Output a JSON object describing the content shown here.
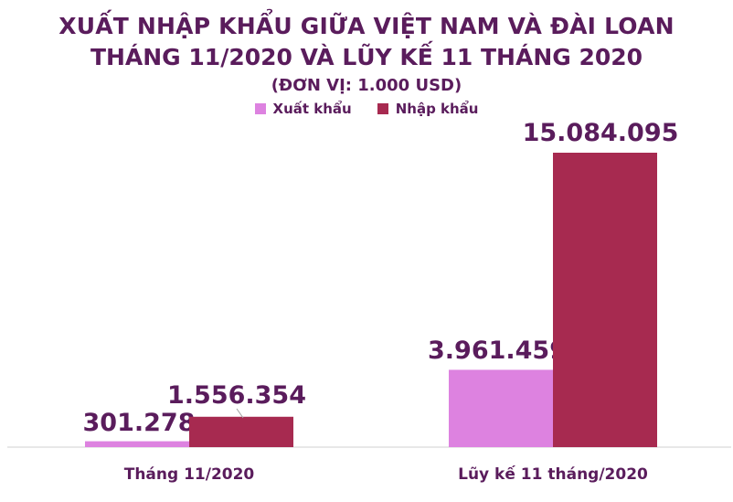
{
  "chart_data": {
    "type": "bar",
    "title_line1": "XUẤT NHẬP KHẨU GIỮA VIỆT NAM VÀ ĐÀI LOAN",
    "title_line2": "THÁNG 11/2020 VÀ LŨY KẾ 11 THÁNG 2020",
    "subtitle": "(ĐƠN VỊ: 1.000 USD)",
    "categories": [
      "Tháng 11/2020",
      "Lũy kế 11 tháng/2020"
    ],
    "series": [
      {
        "name": "Xuất khẩu",
        "values": [
          301278,
          3961459
        ],
        "labels": [
          "301.278",
          "3.961.459"
        ],
        "color": "#dd82e0"
      },
      {
        "name": "Nhập khẩu",
        "values": [
          1556354,
          15084095
        ],
        "labels": [
          "1.556.354",
          "15.084.095"
        ],
        "color": "#a72a50"
      }
    ],
    "ylim": [
      0,
      16000000
    ],
    "grid": false,
    "legend_position": "top"
  },
  "colors": {
    "title": "#5a1c5c"
  }
}
